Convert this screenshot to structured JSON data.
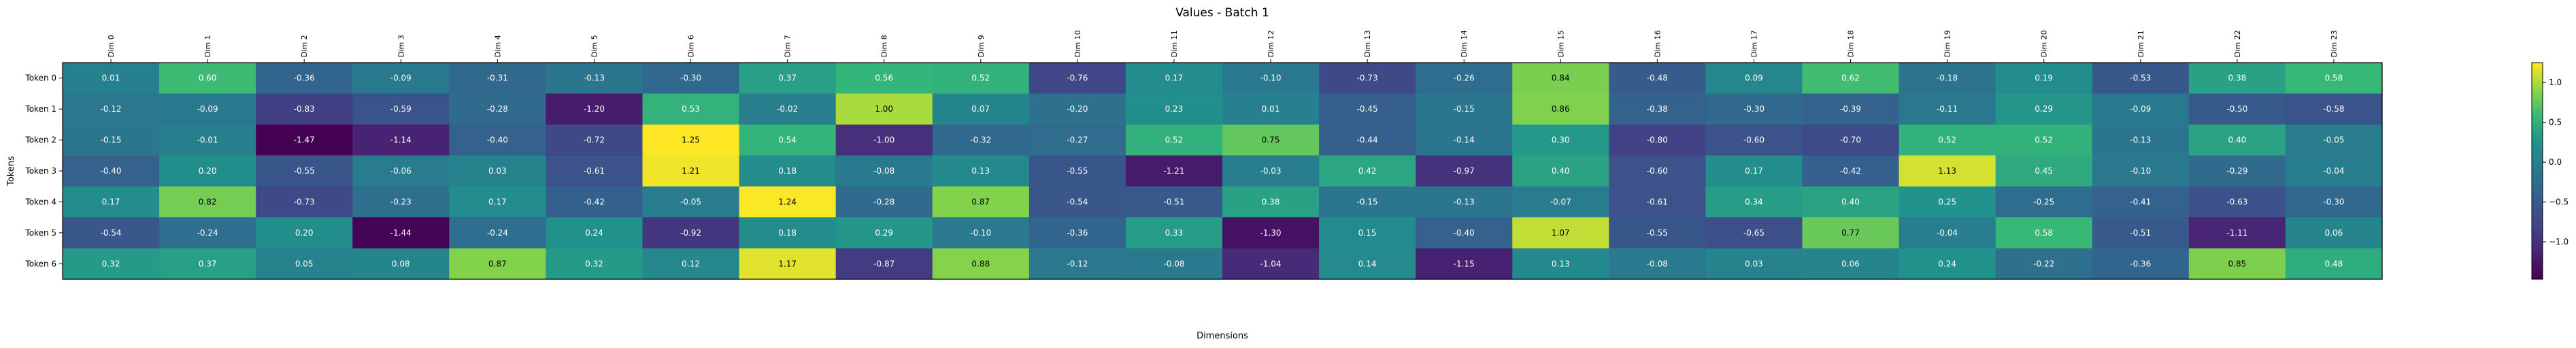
{
  "chart_data": {
    "type": "heatmap",
    "title": "Values - Batch 1",
    "xlabel": "Dimensions",
    "ylabel": "Tokens",
    "colormap": "viridis",
    "color_range": [
      -1.47,
      1.25
    ],
    "colorbar_ticks": [
      -1.0,
      -0.5,
      0.0,
      0.5,
      1.0
    ],
    "colorbar_tick_labels": [
      "−1.0",
      "−0.5",
      "0.0",
      "0.5",
      "1.0"
    ],
    "x": [
      "Dim 0",
      "Dim 1",
      "Dim 2",
      "Dim 3",
      "Dim 4",
      "Dim 5",
      "Dim 6",
      "Dim 7",
      "Dim 8",
      "Dim 9",
      "Dim 10",
      "Dim 11",
      "Dim 12",
      "Dim 13",
      "Dim 14",
      "Dim 15",
      "Dim 16",
      "Dim 17",
      "Dim 18",
      "Dim 19",
      "Dim 20",
      "Dim 21",
      "Dim 22",
      "Dim 23"
    ],
    "y": [
      "Token 0",
      "Token 1",
      "Token 2",
      "Token 3",
      "Token 4",
      "Token 5",
      "Token 6"
    ],
    "values": [
      [
        0.01,
        0.6,
        -0.36,
        -0.09,
        -0.31,
        -0.13,
        -0.3,
        0.37,
        0.56,
        0.52,
        -0.76,
        0.17,
        -0.1,
        -0.73,
        -0.26,
        0.84,
        -0.48,
        0.09,
        0.62,
        -0.18,
        0.19,
        -0.53,
        0.38,
        0.58
      ],
      [
        -0.12,
        -0.09,
        -0.83,
        -0.59,
        -0.28,
        -1.2,
        0.53,
        -0.02,
        1.0,
        0.07,
        -0.2,
        0.23,
        0.01,
        -0.45,
        -0.15,
        0.86,
        -0.38,
        -0.3,
        -0.39,
        -0.11,
        0.29,
        -0.09,
        -0.5,
        -0.58
      ],
      [
        -0.15,
        -0.01,
        -1.47,
        -1.14,
        -0.4,
        -0.72,
        1.25,
        0.54,
        -1.0,
        -0.32,
        -0.27,
        0.52,
        0.75,
        -0.44,
        -0.14,
        0.3,
        -0.8,
        -0.6,
        -0.7,
        0.52,
        0.52,
        -0.13,
        0.4,
        -0.05
      ],
      [
        -0.4,
        0.2,
        -0.55,
        -0.06,
        0.03,
        -0.61,
        1.21,
        0.18,
        -0.08,
        0.13,
        -0.55,
        -1.21,
        -0.03,
        0.42,
        -0.97,
        0.4,
        -0.6,
        0.17,
        -0.42,
        1.13,
        0.45,
        -0.1,
        -0.29,
        -0.04
      ],
      [
        0.17,
        0.82,
        -0.73,
        -0.23,
        0.17,
        -0.42,
        -0.05,
        1.24,
        -0.28,
        0.87,
        -0.54,
        -0.51,
        0.38,
        -0.15,
        -0.13,
        -0.07,
        -0.61,
        0.34,
        0.4,
        0.25,
        -0.25,
        -0.41,
        -0.63,
        -0.3
      ],
      [
        -0.54,
        -0.24,
        0.2,
        -1.44,
        -0.24,
        0.24,
        -0.92,
        0.18,
        0.29,
        -0.1,
        -0.36,
        0.33,
        -1.3,
        0.15,
        -0.4,
        1.07,
        -0.55,
        -0.65,
        0.77,
        -0.04,
        0.58,
        -0.51,
        -1.11,
        0.06
      ],
      [
        0.32,
        0.37,
        0.05,
        0.08,
        0.87,
        0.32,
        0.12,
        1.17,
        -0.87,
        0.88,
        -0.12,
        -0.08,
        -1.04,
        0.14,
        -1.15,
        0.13,
        -0.08,
        0.03,
        0.06,
        0.24,
        -0.22,
        -0.36,
        0.85,
        0.48
      ]
    ],
    "grid": false,
    "legend": "colorbar-right"
  }
}
